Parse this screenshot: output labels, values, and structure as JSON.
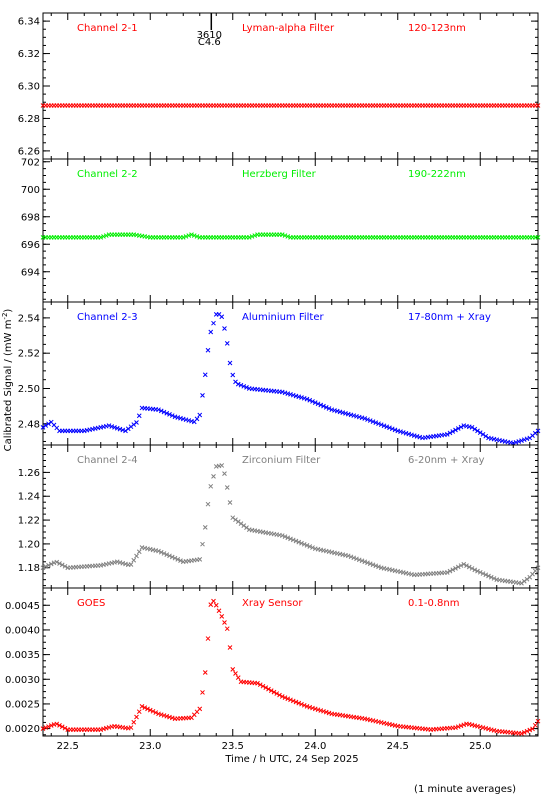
{
  "page": {
    "xlabel": "Time / h UTC, 24 Sep 2025",
    "ylabel": "Calibrated Signal / (mW m",
    "ylabel_sup": "-2",
    "ylabel_tail": ")",
    "footnote": "(1 minute averages)"
  },
  "flare_marker": {
    "time": 23.37,
    "label_top": "3610",
    "label_bottom": "C4.6"
  },
  "xaxis": {
    "min": 22.35,
    "max": 25.35,
    "ticks": [
      22.5,
      23.0,
      23.5,
      24.0,
      24.5,
      25.0
    ],
    "tick_labels": [
      "22.5",
      "23.0",
      "23.5",
      "24.0",
      "24.5",
      "25.0"
    ]
  },
  "chart_data": [
    {
      "type": "scatter",
      "label_left": "Channel 2-1",
      "label_mid": "Lyman-alpha Filter",
      "label_right": "120-123nm",
      "color": "#ff0000",
      "ylim": [
        6.255,
        6.345
      ],
      "yticks": [
        6.26,
        6.28,
        6.3,
        6.32,
        6.34
      ],
      "ytick_labels": [
        "6.26",
        "6.28",
        "6.30",
        "6.32",
        "6.34"
      ],
      "profile": [
        [
          22.35,
          6.288
        ],
        [
          25.35,
          6.288
        ]
      ]
    },
    {
      "type": "scatter",
      "label_left": "Channel 2-2",
      "label_mid": "Herzberg Filter",
      "label_right": "190-222nm",
      "color": "#00ee00",
      "ylim": [
        691.8,
        702.2
      ],
      "yticks": [
        694,
        696,
        698,
        700,
        702
      ],
      "ytick_labels": [
        "694",
        "696",
        "698",
        "700",
        "702"
      ],
      "profile": [
        [
          22.35,
          696.5
        ],
        [
          22.7,
          696.5
        ],
        [
          22.75,
          696.7
        ],
        [
          22.9,
          696.7
        ],
        [
          23.0,
          696.5
        ],
        [
          23.2,
          696.5
        ],
        [
          23.25,
          696.7
        ],
        [
          23.3,
          696.5
        ],
        [
          23.6,
          696.5
        ],
        [
          23.65,
          696.7
        ],
        [
          23.8,
          696.7
        ],
        [
          23.85,
          696.5
        ],
        [
          25.35,
          696.5
        ]
      ]
    },
    {
      "type": "scatter",
      "label_left": "Channel 2-3",
      "label_mid": "Aluminium Filter",
      "label_right": "17-80nm + Xray",
      "color": "#0000ff",
      "ylim": [
        2.468,
        2.549
      ],
      "yticks": [
        2.48,
        2.5,
        2.52,
        2.54
      ],
      "ytick_labels": [
        "2.48",
        "2.50",
        "2.52",
        "2.54"
      ],
      "profile": [
        [
          22.35,
          2.478
        ],
        [
          22.4,
          2.481
        ],
        [
          22.45,
          2.476
        ],
        [
          22.6,
          2.476
        ],
        [
          22.75,
          2.479
        ],
        [
          22.85,
          2.476
        ],
        [
          22.92,
          2.481
        ],
        [
          22.95,
          2.489
        ],
        [
          23.05,
          2.488
        ],
        [
          23.15,
          2.484
        ],
        [
          23.27,
          2.481
        ],
        [
          23.3,
          2.485
        ],
        [
          23.33,
          2.505
        ],
        [
          23.36,
          2.53
        ],
        [
          23.4,
          2.542
        ],
        [
          23.43,
          2.542
        ],
        [
          23.46,
          2.53
        ],
        [
          23.49,
          2.51
        ],
        [
          23.52,
          2.503
        ],
        [
          23.6,
          2.5
        ],
        [
          23.8,
          2.498
        ],
        [
          23.95,
          2.494
        ],
        [
          24.1,
          2.488
        ],
        [
          24.3,
          2.483
        ],
        [
          24.5,
          2.476
        ],
        [
          24.65,
          2.472
        ],
        [
          24.8,
          2.474
        ],
        [
          24.9,
          2.479
        ],
        [
          24.95,
          2.478
        ],
        [
          25.05,
          2.472
        ],
        [
          25.2,
          2.469
        ],
        [
          25.3,
          2.472
        ],
        [
          25.35,
          2.476
        ]
      ]
    },
    {
      "type": "scatter",
      "label_left": "Channel 2-4",
      "label_mid": "Zirconium Filter",
      "label_right": "6-20nm + Xray",
      "color": "#808080",
      "ylim": [
        1.163,
        1.283
      ],
      "yticks": [
        1.18,
        1.2,
        1.22,
        1.24,
        1.26
      ],
      "ytick_labels": [
        "1.18",
        "1.20",
        "1.22",
        "1.24",
        "1.26"
      ],
      "profile": [
        [
          22.35,
          1.18
        ],
        [
          22.43,
          1.185
        ],
        [
          22.5,
          1.18
        ],
        [
          22.7,
          1.182
        ],
        [
          22.8,
          1.185
        ],
        [
          22.88,
          1.182
        ],
        [
          22.95,
          1.197
        ],
        [
          23.05,
          1.194
        ],
        [
          23.2,
          1.185
        ],
        [
          23.3,
          1.187
        ],
        [
          23.33,
          1.21
        ],
        [
          23.36,
          1.245
        ],
        [
          23.4,
          1.265
        ],
        [
          23.44,
          1.266
        ],
        [
          23.47,
          1.245
        ],
        [
          23.5,
          1.222
        ],
        [
          23.6,
          1.212
        ],
        [
          23.8,
          1.207
        ],
        [
          24.0,
          1.196
        ],
        [
          24.2,
          1.19
        ],
        [
          24.4,
          1.18
        ],
        [
          24.6,
          1.174
        ],
        [
          24.8,
          1.176
        ],
        [
          24.9,
          1.183
        ],
        [
          24.97,
          1.178
        ],
        [
          25.1,
          1.17
        ],
        [
          25.25,
          1.167
        ],
        [
          25.3,
          1.172
        ],
        [
          25.35,
          1.18
        ]
      ]
    },
    {
      "type": "scatter",
      "label_left": "GOES",
      "label_mid": "Xray Sensor",
      "label_right": "0.1-0.8nm",
      "color": "#ff0000",
      "ylim": [
        0.00185,
        0.00485
      ],
      "yticks": [
        0.002,
        0.0025,
        0.003,
        0.0035,
        0.004,
        0.0045
      ],
      "ytick_labels": [
        "0.0020",
        "0.0025",
        "0.0030",
        "0.0035",
        "0.0040",
        "0.0045"
      ],
      "profile": [
        [
          22.35,
          0.002
        ],
        [
          22.43,
          0.0021
        ],
        [
          22.5,
          0.00198
        ],
        [
          22.7,
          0.00198
        ],
        [
          22.78,
          0.00205
        ],
        [
          22.88,
          0.002
        ],
        [
          22.95,
          0.00245
        ],
        [
          23.05,
          0.0023
        ],
        [
          23.15,
          0.0022
        ],
        [
          23.25,
          0.00222
        ],
        [
          23.3,
          0.0024
        ],
        [
          23.33,
          0.003
        ],
        [
          23.37,
          0.00465
        ],
        [
          23.4,
          0.0045
        ],
        [
          23.43,
          0.0043
        ],
        [
          23.47,
          0.004
        ],
        [
          23.5,
          0.0032
        ],
        [
          23.55,
          0.00295
        ],
        [
          23.65,
          0.00292
        ],
        [
          23.8,
          0.00265
        ],
        [
          23.95,
          0.00245
        ],
        [
          24.1,
          0.0023
        ],
        [
          24.3,
          0.0022
        ],
        [
          24.5,
          0.00205
        ],
        [
          24.7,
          0.00198
        ],
        [
          24.85,
          0.00202
        ],
        [
          24.92,
          0.0021
        ],
        [
          24.98,
          0.00205
        ],
        [
          25.1,
          0.00195
        ],
        [
          25.25,
          0.0019
        ],
        [
          25.32,
          0.002
        ],
        [
          25.35,
          0.00215
        ]
      ]
    }
  ]
}
